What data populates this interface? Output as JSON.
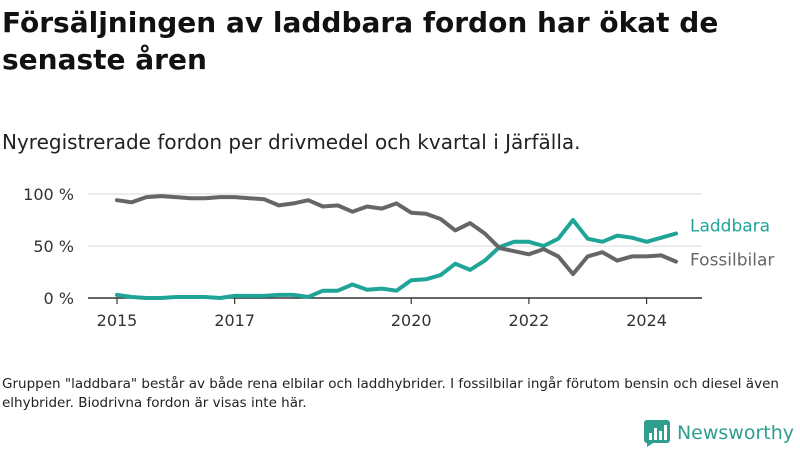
{
  "title": "Försäljningen av laddbara fordon har ökat de senaste åren",
  "subtitle": "Nyregistrerade fordon per drivmedel och kvartal i Järfälla.",
  "note": "Gruppen \"laddbara\" består av både rena elbilar och laddhybrider. I fossilbilar ingår förutom bensin och diesel även elhybrider. Biodrivna fordon är visas inte här.",
  "brand": {
    "name": "Newsworthy",
    "icon": "newsworthy-logo-icon",
    "color": "#2e9e8f"
  },
  "colors": {
    "laddbara": "#1fa598",
    "fossil": "#666666",
    "grid": "#d9d9d9",
    "axis": "#333333"
  },
  "chart_data": {
    "type": "line",
    "title": "Försäljningen av laddbara fordon har ökat de senaste åren",
    "xlabel": "",
    "ylabel": "",
    "ylim": [
      0,
      100
    ],
    "xlim": [
      2015,
      2024.5
    ],
    "y_ticks": [
      0,
      50,
      100
    ],
    "y_tick_labels": [
      "0 %",
      "50 %",
      "100 %"
    ],
    "x_ticks": [
      2015,
      2017,
      2020,
      2022,
      2024
    ],
    "x_tick_labels": [
      "2015",
      "2017",
      "2020",
      "2022",
      "2024"
    ],
    "x": [
      2015,
      2015.25,
      2015.5,
      2015.75,
      2016,
      2016.25,
      2016.5,
      2016.75,
      2017,
      2017.25,
      2017.5,
      2017.75,
      2018,
      2018.25,
      2018.5,
      2018.75,
      2019,
      2019.25,
      2019.5,
      2019.75,
      2020,
      2020.25,
      2020.5,
      2020.75,
      2021,
      2021.25,
      2021.5,
      2021.75,
      2022,
      2022.25,
      2022.5,
      2022.75,
      2023,
      2023.25,
      2023.5,
      2023.75,
      2024,
      2024.25,
      2024.5
    ],
    "series": [
      {
        "name": "Laddbara",
        "label": "Laddbara",
        "color": "#1fa598",
        "values": [
          3,
          1,
          0,
          0,
          1,
          1,
          1,
          0,
          2,
          2,
          2,
          3,
          3,
          1,
          7,
          7,
          13,
          8,
          9,
          7,
          17,
          18,
          22,
          33,
          27,
          36,
          49,
          54,
          54,
          50,
          57,
          75,
          57,
          54,
          60,
          58,
          54,
          58,
          62
        ]
      },
      {
        "name": "Fossilbilar",
        "label": "Fossilbilar",
        "color": "#666666",
        "values": [
          94,
          92,
          97,
          98,
          97,
          96,
          96,
          97,
          97,
          96,
          95,
          89,
          91,
          94,
          88,
          89,
          83,
          88,
          86,
          91,
          82,
          81,
          76,
          65,
          72,
          62,
          48,
          45,
          42,
          47,
          40,
          23,
          40,
          44,
          36,
          40,
          40,
          41,
          35
        ]
      }
    ]
  }
}
